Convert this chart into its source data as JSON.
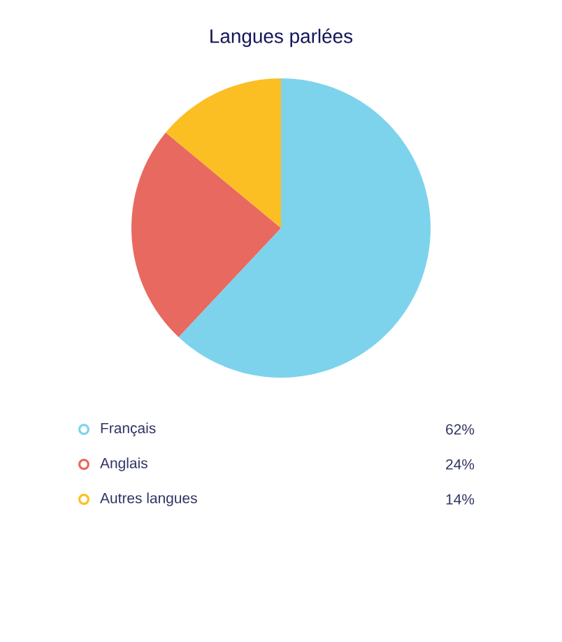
{
  "chart_data": {
    "type": "pie",
    "title": "Langues parlées",
    "categories": [
      "Français",
      "Anglais",
      "Autres langues"
    ],
    "values": [
      62,
      24,
      14
    ],
    "value_labels": [
      "62%",
      "24%",
      "14%"
    ],
    "colors": [
      "#7dd3ec",
      "#e8695f",
      "#fbbf24"
    ],
    "legend": "bottom"
  }
}
